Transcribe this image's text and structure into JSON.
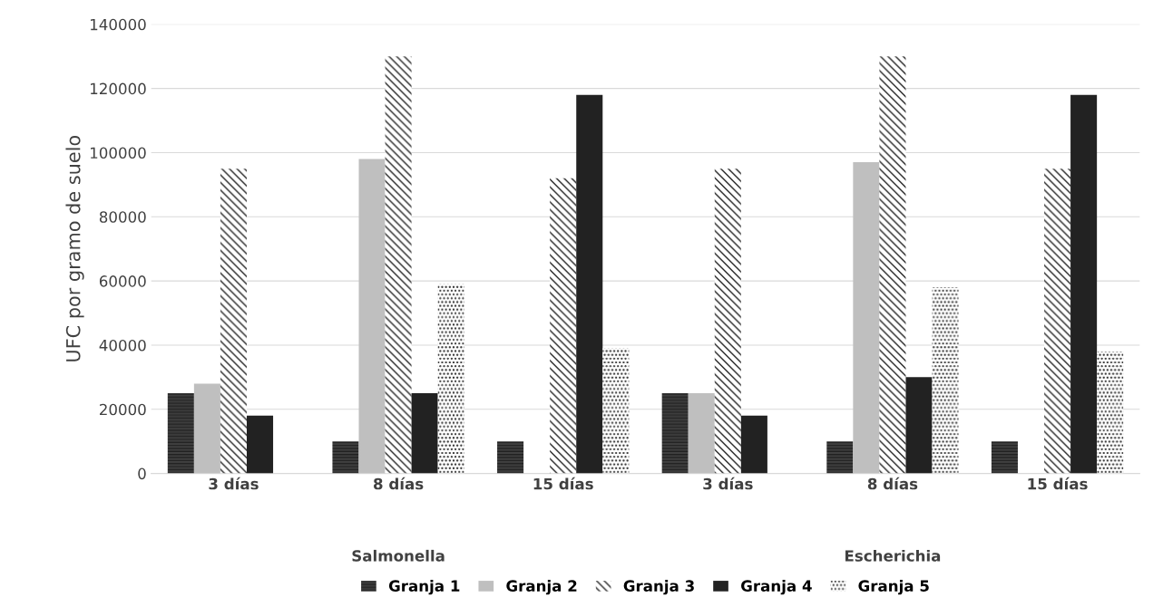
{
  "chart_data": {
    "type": "bar",
    "ylabel": "UFC por gramo de suelo",
    "categories": [
      "3 días",
      "8 días",
      "15 días",
      "3 días",
      "8 días",
      "15 días"
    ],
    "series": [
      {
        "name": "Granja 1",
        "color": "#404040",
        "values": [
          25000,
          10000,
          10000,
          25000,
          10000,
          10000
        ]
      },
      {
        "name": "Granja 2",
        "color": "#bfbfbf",
        "values": [
          28000,
          98000,
          0,
          25000,
          97000,
          0
        ]
      },
      {
        "name": "Granja 3",
        "color": "#ffffff",
        "values": [
          95000,
          130000,
          92000,
          95000,
          130000,
          95000
        ]
      },
      {
        "name": "Granja 4",
        "color": "#222222",
        "values": [
          18000,
          25000,
          118000,
          18000,
          30000,
          118000
        ]
      },
      {
        "name": "Granja 5",
        "color": "#ffffff",
        "values": [
          0,
          59000,
          39000,
          0,
          58000,
          38000
        ]
      }
    ],
    "annotations": [
      "Salmonella",
      "Escherichia"
    ],
    "ylim": [
      0,
      140000
    ],
    "yticks": [
      0,
      20000,
      40000,
      60000,
      80000,
      100000,
      120000,
      140000
    ],
    "grid": "y",
    "legend": "bottom"
  }
}
